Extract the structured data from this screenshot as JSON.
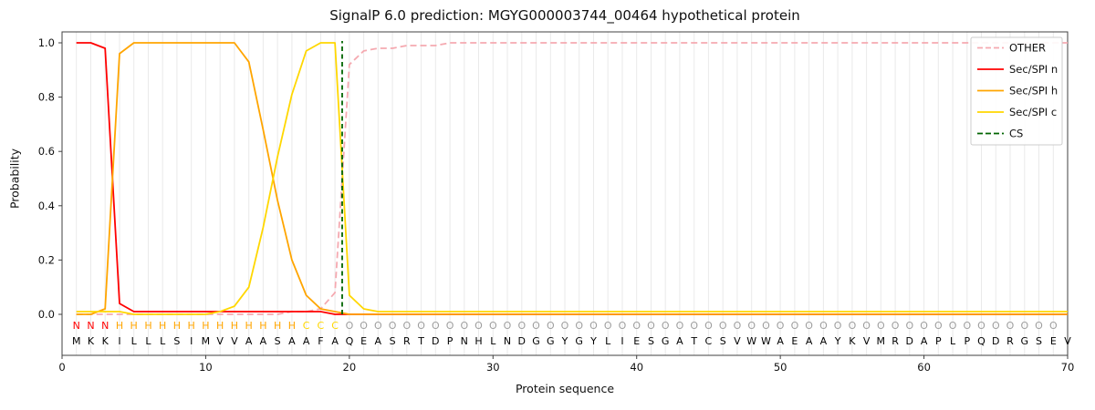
{
  "chart_data": {
    "type": "line",
    "title": "SignalP 6.0 prediction: MGYG000003744_00464 hypothetical protein",
    "xlabel": "Protein sequence",
    "ylabel": "Probability",
    "xlim": [
      0,
      70
    ],
    "ylim": [
      -0.15,
      1.05
    ],
    "xticks": [
      0,
      10,
      20,
      30,
      40,
      50,
      60,
      70
    ],
    "yticks": [
      0.0,
      0.2,
      0.4,
      0.6,
      0.8,
      1.0
    ],
    "grid": "vertical line per residue",
    "legend_position": "upper right",
    "positions": [
      1,
      2,
      3,
      4,
      5,
      6,
      7,
      8,
      9,
      10,
      11,
      12,
      13,
      14,
      15,
      16,
      17,
      18,
      19,
      20,
      21,
      22,
      23,
      24,
      25,
      26,
      27,
      28,
      29,
      30,
      31,
      32,
      33,
      34,
      35,
      36,
      37,
      38,
      39,
      40,
      41,
      42,
      43,
      44,
      45,
      46,
      47,
      48,
      49,
      50,
      51,
      52,
      53,
      54,
      55,
      56,
      57,
      58,
      59,
      60,
      61,
      62,
      63,
      64,
      65,
      66,
      67,
      68,
      69,
      70
    ],
    "series": [
      {
        "name": "OTHER",
        "color": "#f5a9b0",
        "style": "dashed",
        "values": [
          0,
          0,
          0,
          0,
          0,
          0,
          0,
          0,
          0,
          0,
          0,
          0,
          0,
          0,
          0,
          0.01,
          0.01,
          0.02,
          0.08,
          0.92,
          0.97,
          0.98,
          0.98,
          0.99,
          0.99,
          0.99,
          1,
          1,
          1,
          1,
          1,
          1,
          1,
          1,
          1,
          1,
          1,
          1,
          1,
          1,
          1,
          1,
          1,
          1,
          1,
          1,
          1,
          1,
          1,
          1,
          1,
          1,
          1,
          1,
          1,
          1,
          1,
          1,
          1,
          1,
          1,
          1,
          1,
          1,
          1,
          1,
          1,
          1,
          1,
          1
        ]
      },
      {
        "name": "Sec/SPI n",
        "color": "#ff0000",
        "style": "solid",
        "values": [
          1,
          1,
          0.98,
          0.04,
          0.01,
          0.01,
          0.01,
          0.01,
          0.01,
          0.01,
          0.01,
          0.01,
          0.01,
          0.01,
          0.01,
          0.01,
          0.01,
          0.01,
          0,
          0,
          0,
          0,
          0,
          0,
          0,
          0,
          0,
          0,
          0,
          0,
          0,
          0,
          0,
          0,
          0,
          0,
          0,
          0,
          0,
          0,
          0,
          0,
          0,
          0,
          0,
          0,
          0,
          0,
          0,
          0,
          0,
          0,
          0,
          0,
          0,
          0,
          0,
          0,
          0,
          0,
          0,
          0,
          0,
          0,
          0,
          0,
          0,
          0,
          0,
          0
        ]
      },
      {
        "name": "Sec/SPI h",
        "color": "#ffa500",
        "style": "solid",
        "values": [
          0,
          0,
          0.02,
          0.96,
          1,
          1,
          1,
          1,
          1,
          1,
          1,
          1,
          0.93,
          0.68,
          0.42,
          0.2,
          0.07,
          0.02,
          0.01,
          0,
          0,
          0,
          0,
          0,
          0,
          0,
          0,
          0,
          0,
          0,
          0,
          0,
          0,
          0,
          0,
          0,
          0,
          0,
          0,
          0,
          0,
          0,
          0,
          0,
          0,
          0,
          0,
          0,
          0,
          0,
          0,
          0,
          0,
          0,
          0,
          0,
          0,
          0,
          0,
          0,
          0,
          0,
          0,
          0,
          0,
          0,
          0,
          0,
          0,
          0
        ]
      },
      {
        "name": "Sec/SPI c",
        "color": "#ffd700",
        "style": "solid",
        "values": [
          0.01,
          0.01,
          0.01,
          0.01,
          0,
          0,
          0,
          0,
          0,
          0,
          0.01,
          0.03,
          0.1,
          0.32,
          0.58,
          0.81,
          0.97,
          1,
          1,
          0.07,
          0.02,
          0.01,
          0.01,
          0.01,
          0.01,
          0.01,
          0.01,
          0.01,
          0.01,
          0.01,
          0.01,
          0.01,
          0.01,
          0.01,
          0.01,
          0.01,
          0.01,
          0.01,
          0.01,
          0.01,
          0.01,
          0.01,
          0.01,
          0.01,
          0.01,
          0.01,
          0.01,
          0.01,
          0.01,
          0.01,
          0.01,
          0.01,
          0.01,
          0.01,
          0.01,
          0.01,
          0.01,
          0.01,
          0.01,
          0.01,
          0.01,
          0.01,
          0.01,
          0.01,
          0.01,
          0.01,
          0.01,
          0.01,
          0.01,
          0.01
        ]
      }
    ],
    "cs_marker": {
      "label": "CS",
      "position": 19.5,
      "color": "#006400",
      "style": "dashed"
    },
    "sequence": "MKKILLLSIMVVAASAAFAQEASRTDPNHLNDGGYGYLIESGATCSVWWAEAAYKVMRDAPLPQDRGSEV",
    "residue_type_labels": "NNNHHHHHHHHHHHHHCCCOOOOOOOOOOOOOOOOOOOOOOOOOOOOOOOOOOOOOOOOOOOOOOOOOO",
    "label_colors": {
      "N": "#ff0000",
      "H": "#ffa500",
      "C": "#ffd700",
      "O": "#9e9e9e"
    },
    "sequence_color": "#000000"
  }
}
